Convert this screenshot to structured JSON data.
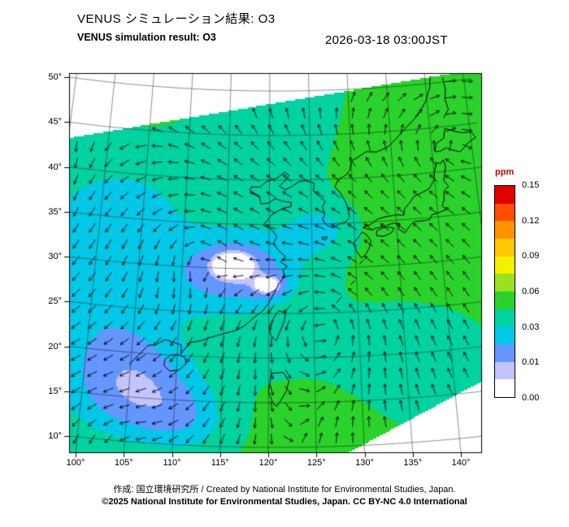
{
  "header": {
    "title_ja": "VENUS シミュレーション結果: O3",
    "title_en": "VENUS simulation result: O3",
    "timestamp": "2026-03-18 03:00JST"
  },
  "map": {
    "lat_tick_labels": [
      "50°",
      "45°",
      "40°",
      "35°",
      "30°",
      "25°",
      "20°",
      "15°",
      "10°"
    ],
    "lon_tick_labels": [
      "100°",
      "105°",
      "110°",
      "115°",
      "120°",
      "125°",
      "130°",
      "135°",
      "140°"
    ],
    "grid_color": "#000000",
    "coast_color": "#000000",
    "arrow_color": "#000000",
    "no_data_color": "#ffffff"
  },
  "colorbar": {
    "unit": "ppm",
    "unit_color": "#cc0000",
    "tick_labels": [
      "0.15",
      "0.12",
      "0.09",
      "0.06",
      "0.03",
      "0.01",
      "0.00"
    ],
    "band_colors_top_to_bottom": [
      "#e00000",
      "#ff4e00",
      "#ff9400",
      "#ffc800",
      "#f5f000",
      "#9be121",
      "#2bd22b",
      "#00d2a0",
      "#00c8e6",
      "#6496ff",
      "#c3c3ff",
      "#ffffff"
    ]
  },
  "map_data": {
    "variable": "O3",
    "unit": "ppm",
    "lon_range_deg": [
      100,
      140
    ],
    "lat_range_deg": [
      10,
      50
    ],
    "lat_ticks": [
      50,
      45,
      40,
      35,
      30,
      25,
      20,
      15,
      10
    ],
    "lon_ticks": [
      100,
      105,
      110,
      115,
      120,
      125,
      130,
      135,
      140
    ],
    "colorbar_ticks_ppm": [
      0.15,
      0.12,
      0.09,
      0.06,
      0.03,
      0.01,
      0.0
    ],
    "field_summary": "Ozone concentration mostly 0.03-0.06 ppm (green/turquoise) over the western Pacific and Japan; low values (<0.01 ppm, white/blue patches) over central-eastern China and southern China; wind vector arrows overlaid on a tilted model domain"
  },
  "footer": {
    "credit": "作成: 国立環境研究所 / Created by National Institute for Environmental Studies, Japan.",
    "copyright": "©2025 National Institute for Environmental Studies, Japan. CC BY-NC 4.0 International"
  }
}
